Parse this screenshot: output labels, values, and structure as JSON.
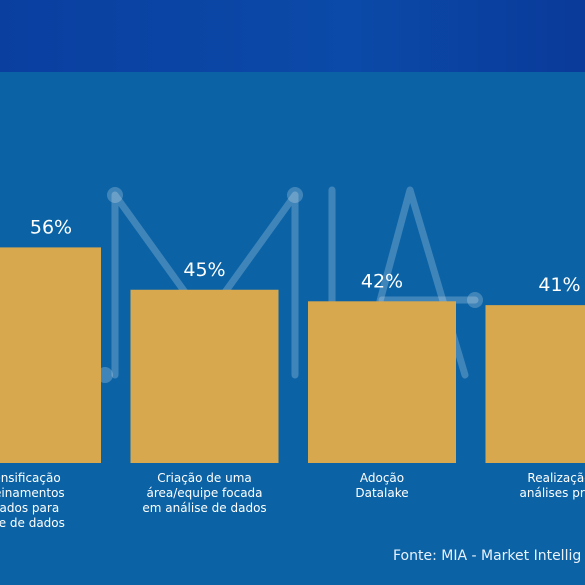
{
  "chart_data": {
    "type": "bar",
    "title": "",
    "xlabel": "",
    "ylabel": "",
    "ylim": [
      0,
      60
    ],
    "categories": [
      [
        "ensificação",
        "reinamentos",
        "tados para",
        "ise de dados"
      ],
      [
        "Criação de uma",
        "área/equipe focada",
        "em análise de dados"
      ],
      [
        "Adoção",
        "Datalake"
      ],
      [
        "Realização",
        "análises pred"
      ]
    ],
    "values": [
      56,
      45,
      42,
      41
    ],
    "value_labels": [
      "56%",
      "45%",
      "42%",
      "41%"
    ],
    "bar_color": "#d8a84f",
    "grid": false
  },
  "watermark": {
    "text": "MIA"
  },
  "source": "Fonte: MIA - Market Intellig",
  "colors": {
    "background": "#0b63a6",
    "header": "#0a3fa0",
    "text": "#ffffff"
  }
}
